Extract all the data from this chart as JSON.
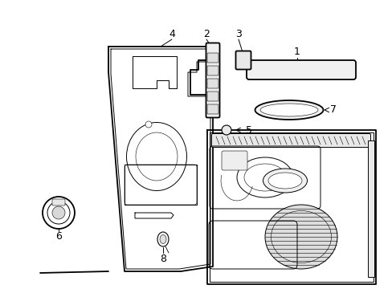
{
  "background_color": "#ffffff",
  "line_color": "#000000",
  "gray_color": "#aaaaaa",
  "light_gray": "#cccccc",
  "lw_main": 1.3,
  "lw_thin": 0.7,
  "lw_hairline": 0.4,
  "label_fontsize": 9,
  "figsize": [
    4.89,
    3.6
  ],
  "dpi": 100
}
